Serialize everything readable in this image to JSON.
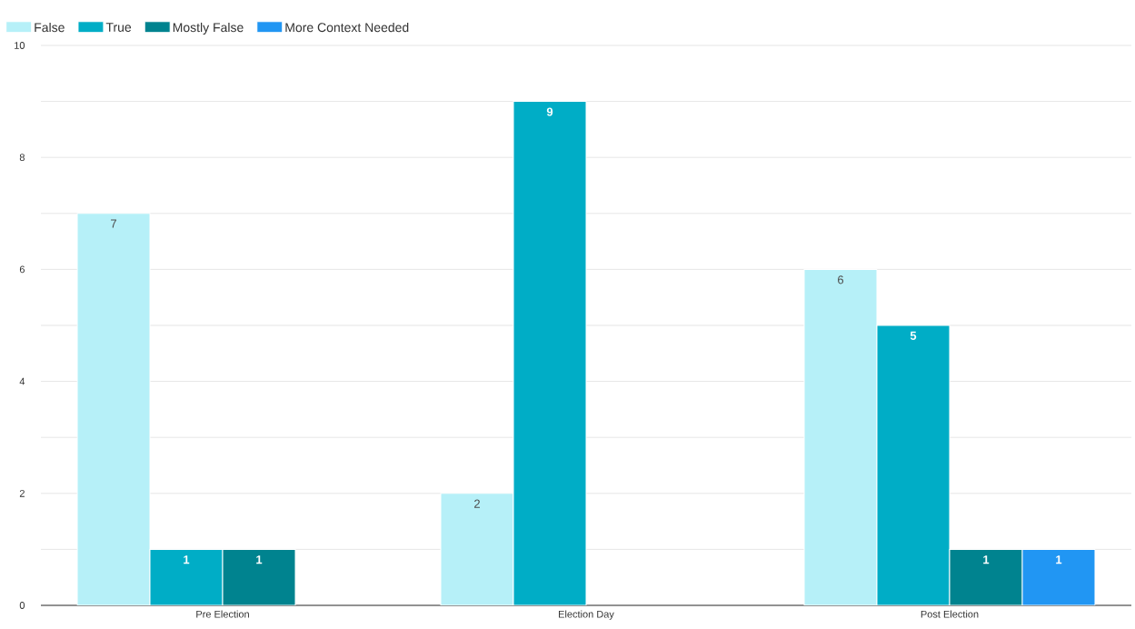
{
  "chart_data": {
    "type": "bar",
    "categories": [
      "Pre Election",
      "Election Day",
      "Post Election"
    ],
    "series": [
      {
        "name": "False",
        "color": "#b6f0f8",
        "values": [
          7,
          2,
          6
        ]
      },
      {
        "name": "True",
        "color": "#00adc6",
        "values": [
          1,
          9,
          5
        ]
      },
      {
        "name": "Mostly False",
        "color": "#00838f",
        "values": [
          1,
          null,
          1
        ]
      },
      {
        "name": "More Context Needed",
        "color": "#2196f3",
        "values": [
          null,
          null,
          1
        ]
      }
    ],
    "ylim": [
      0,
      10
    ],
    "yticks": [
      0,
      {
        "value": 1,
        "label": null
      },
      2,
      {
        "value": 3,
        "label": null
      },
      4,
      {
        "value": 5,
        "label": null
      },
      6,
      {
        "value": 7,
        "label": null
      },
      8,
      {
        "value": 9,
        "label": null
      },
      10
    ],
    "grid": "y",
    "legend": "top left",
    "data_labels": true
  }
}
